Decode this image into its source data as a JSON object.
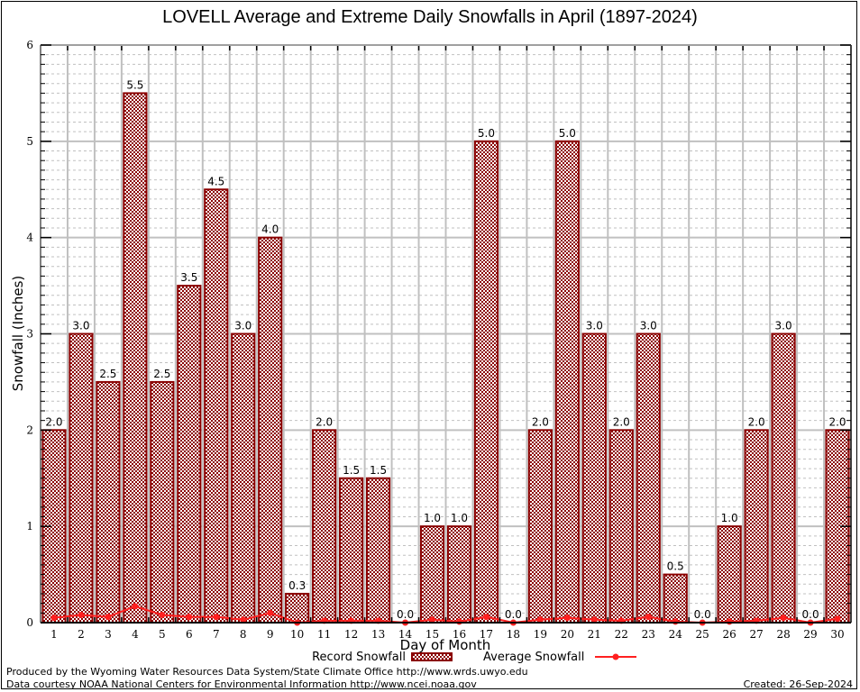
{
  "chart_data": {
    "type": "bar",
    "title": "LOVELL Average and Extreme Daily Snowfalls in April (1897-2024)",
    "xlabel": "Day of Month",
    "ylabel": "Snowfall (Inches)",
    "ylim": [
      0,
      6
    ],
    "yticks": [
      0,
      1,
      2,
      3,
      4,
      5,
      6
    ],
    "grid": true,
    "categories": [
      "1",
      "2",
      "3",
      "4",
      "5",
      "6",
      "7",
      "8",
      "9",
      "10",
      "11",
      "12",
      "13",
      "14",
      "15",
      "16",
      "17",
      "18",
      "19",
      "20",
      "21",
      "22",
      "23",
      "24",
      "25",
      "26",
      "27",
      "28",
      "29",
      "30"
    ],
    "series": [
      {
        "name": "Record Snowfall",
        "type": "bar",
        "color": "#8b0000",
        "values": [
          2.0,
          3.0,
          2.5,
          5.5,
          2.5,
          3.5,
          4.5,
          3.0,
          4.0,
          0.3,
          2.0,
          1.5,
          1.5,
          0.0,
          1.0,
          1.0,
          5.0,
          0.0,
          2.0,
          5.0,
          3.0,
          2.0,
          3.0,
          0.5,
          0.0,
          1.0,
          2.0,
          3.0,
          0.0,
          2.0
        ],
        "labels": [
          "2.0",
          "3.0",
          "2.5",
          "5.5",
          "2.5",
          "3.5",
          "4.5",
          "3.0",
          "4.0",
          "0.3",
          "2.0",
          "1.5",
          "1.5",
          "0.0",
          "1.0",
          "1.0",
          "5.0",
          "0.0",
          "2.0",
          "5.0",
          "3.0",
          "2.0",
          "3.0",
          "0.5",
          "0.0",
          "1.0",
          "2.0",
          "3.0",
          "0.0",
          "2.0"
        ]
      },
      {
        "name": "Average Snowfall",
        "type": "line",
        "color": "#ff2020",
        "values": [
          0.05,
          0.08,
          0.06,
          0.17,
          0.08,
          0.06,
          0.06,
          0.03,
          0.1,
          0.0,
          0.02,
          0.02,
          0.02,
          0.0,
          0.03,
          0.01,
          0.06,
          0.0,
          0.03,
          0.05,
          0.03,
          0.02,
          0.06,
          0.01,
          0.0,
          0.01,
          0.02,
          0.05,
          0.0,
          0.04
        ]
      }
    ],
    "legend": {
      "position": "bottom-center",
      "entries": [
        "Record Snowfall",
        "Average Snowfall"
      ]
    }
  },
  "footer": {
    "line1": "Produced by the Wyoming Water Resources Data System/State Climate Office http://www.wrds.uwyo.edu",
    "line2": "Data courtesy NOAA National Centers for Environmental Information http://www.ncei.noaa.gov",
    "created": "Created:  26-Sep-2024"
  }
}
